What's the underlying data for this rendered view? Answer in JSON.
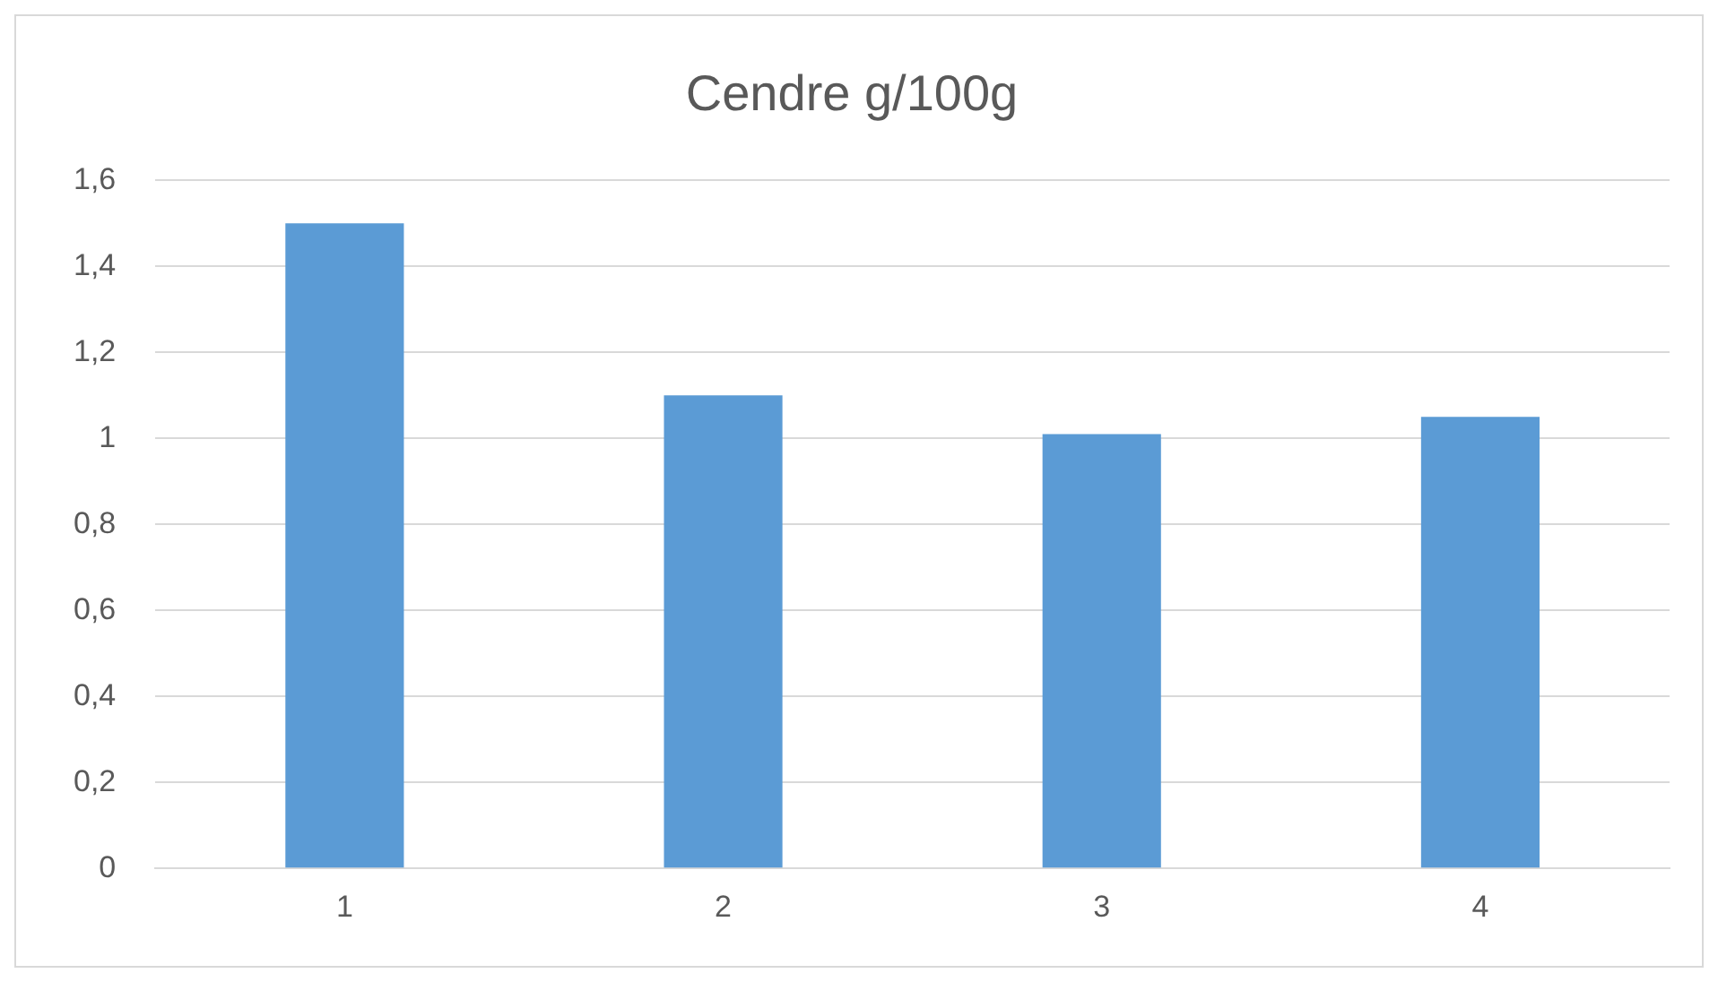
{
  "chart_data": {
    "type": "bar",
    "title": "Cendre g/100g",
    "categories": [
      "1",
      "2",
      "3",
      "4"
    ],
    "values": [
      1.5,
      1.1,
      1.01,
      1.05
    ],
    "color": "#5b9bd5",
    "ylim": [
      0,
      1.6
    ],
    "yticks": [
      0,
      {
        "value": 0.2,
        "label": "0,2"
      },
      {
        "value": 0.4,
        "label": "0,4"
      },
      {
        "value": 0.6,
        "label": "0,6"
      },
      {
        "value": 0.8,
        "label": "0,8"
      },
      1,
      {
        "value": 1.2,
        "label": "1,2"
      },
      {
        "value": 1.4,
        "label": "1,4"
      },
      {
        "value": 1.6,
        "label": "1,6"
      }
    ],
    "grid": "y",
    "legend": false
  }
}
